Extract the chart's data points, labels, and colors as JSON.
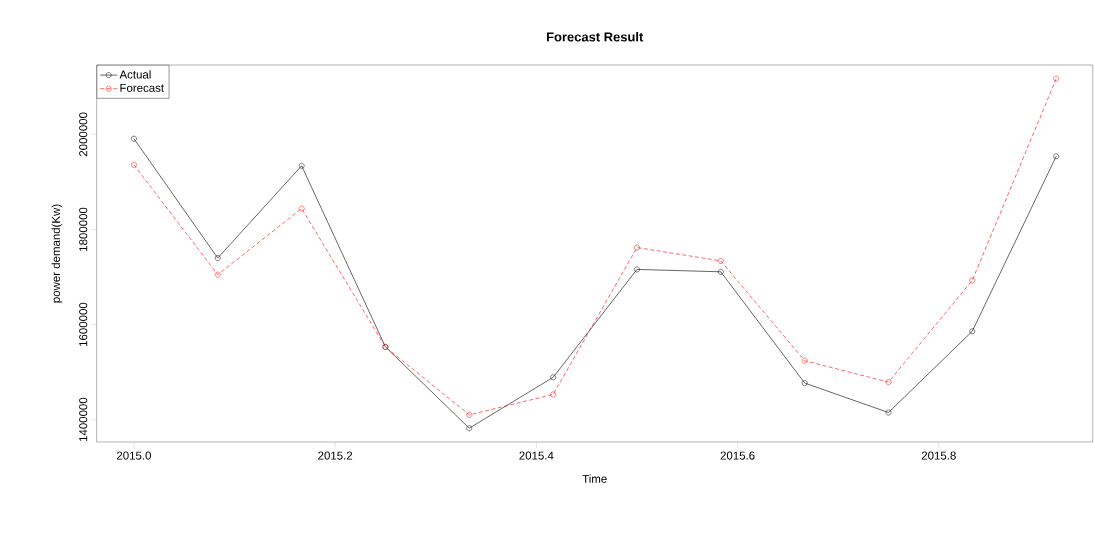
{
  "chart_data": {
    "type": "line",
    "title": "Forecast Result",
    "xlabel": "Time",
    "ylabel": "power demand(Kw)",
    "x": [
      2015.0,
      2015.0833,
      2015.1667,
      2015.25,
      2015.3333,
      2015.4167,
      2015.5,
      2015.5833,
      2015.6667,
      2015.75,
      2015.8333,
      2015.9167
    ],
    "series": [
      {
        "name": "Actual",
        "color": "#000000",
        "line_style": "solid",
        "values": [
          1991000,
          1740000,
          1934000,
          1553000,
          1382000,
          1489000,
          1716000,
          1711000,
          1477000,
          1415000,
          1586000,
          1954000
        ]
      },
      {
        "name": "Forecast",
        "color": "#ff0000",
        "line_style": "dashed",
        "values": [
          1936000,
          1705000,
          1844000,
          1553000,
          1410000,
          1453000,
          1762000,
          1734000,
          1524000,
          1479000,
          1693000,
          2117000
        ]
      }
    ],
    "xlim": [
      2014.963,
      2015.953
    ],
    "ylim": [
      1353000,
      2146000
    ],
    "xticks": [
      {
        "value": 2015.0,
        "label": "2015.0"
      },
      2015.2,
      2015.4,
      2015.6,
      2015.8
    ],
    "yticks": [
      1400000,
      1600000,
      1800000,
      2000000
    ],
    "marker": "circle",
    "legend": "top left",
    "grid": false
  }
}
